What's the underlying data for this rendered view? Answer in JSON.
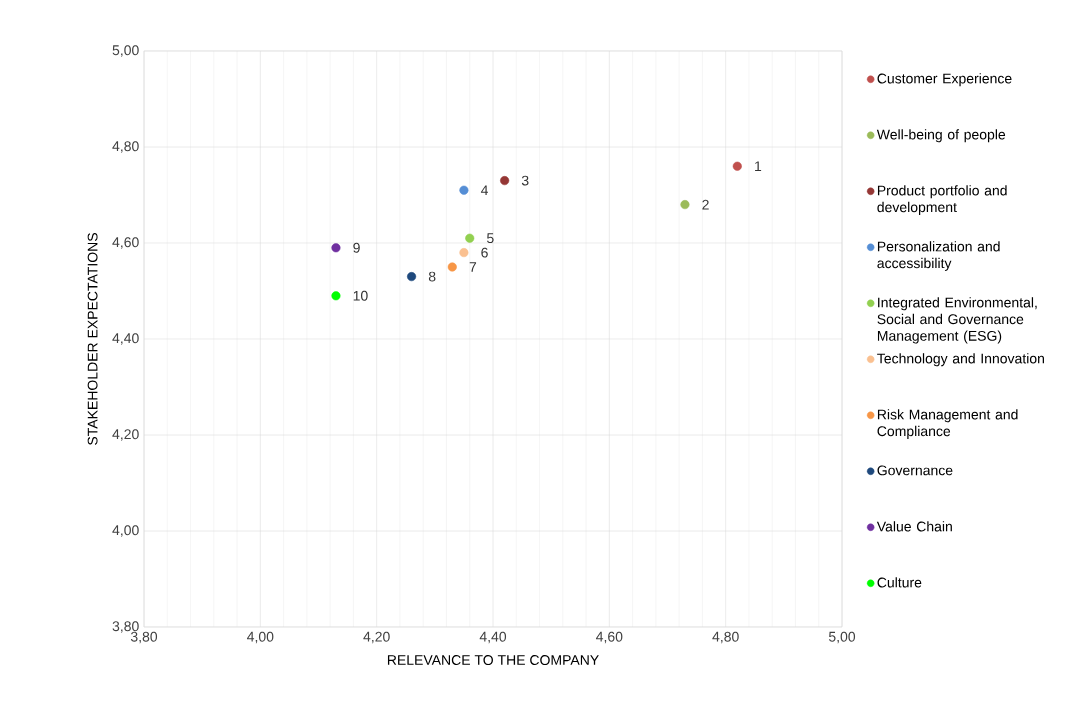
{
  "chart_data": {
    "type": "scatter",
    "xlabel": "RELEVANCE TO THE COMPANY",
    "ylabel": "STAKEHOLDER EXPECTATIONS",
    "xlim": [
      3.8,
      5.0
    ],
    "ylim": [
      3.8,
      5.0
    ],
    "xticks": [
      {
        "value": 3.8,
        "label": "3,80"
      },
      {
        "value": 4.0,
        "label": "4,00"
      },
      {
        "value": 4.2,
        "label": "4,20"
      },
      {
        "value": 4.4,
        "label": "4,40"
      },
      {
        "value": 4.6,
        "label": "4,60"
      },
      {
        "value": 4.8,
        "label": "4,80"
      },
      {
        "value": 5.0,
        "label": "5,00"
      }
    ],
    "yticks": [
      {
        "value": 3.8,
        "label": "3,80"
      },
      {
        "value": 4.0,
        "label": "4,00"
      },
      {
        "value": 4.2,
        "label": "4,20"
      },
      {
        "value": 4.4,
        "label": "4,40"
      },
      {
        "value": 4.6,
        "label": "4,60"
      },
      {
        "value": 4.8,
        "label": "4,80"
      },
      {
        "value": 5.0,
        "label": "5,00"
      }
    ],
    "grid": true,
    "legend": "right",
    "series": [
      {
        "name": "Customer Experience",
        "color": "#c0504d",
        "x": [
          4.82
        ],
        "values": [
          4.76
        ]
      },
      {
        "name": "Well-being of people",
        "color": "#9bbb59",
        "x": [
          4.73
        ],
        "values": [
          4.68
        ]
      },
      {
        "name": "Product portfolio and development",
        "color": "#953735",
        "x": [
          4.42
        ],
        "values": [
          4.73
        ]
      },
      {
        "name": "Personalization and accessibility",
        "color": "#558ed5",
        "x": [
          4.35
        ],
        "values": [
          4.71
        ]
      },
      {
        "name": "Integrated Environmental, Social and Governance Management (ESG)",
        "color": "#92d050",
        "x": [
          4.36
        ],
        "values": [
          4.61
        ]
      },
      {
        "name": "Technology and Innovation",
        "color": "#fac090",
        "x": [
          4.35
        ],
        "values": [
          4.58
        ]
      },
      {
        "name": "Risk Management and Compliance",
        "color": "#f79646",
        "x": [
          4.33
        ],
        "values": [
          4.55
        ]
      },
      {
        "name": "Governance",
        "color": "#1f497d",
        "x": [
          4.26
        ],
        "values": [
          4.53
        ]
      },
      {
        "name": "Value Chain",
        "color": "#7030a0",
        "x": [
          4.13
        ],
        "values": [
          4.59
        ]
      },
      {
        "name": "Culture",
        "color": "#00ff00",
        "x": [
          4.13
        ],
        "values": [
          4.49
        ]
      }
    ],
    "annotations": [
      {
        "text": "1",
        "x": 4.82,
        "y": 4.76
      },
      {
        "text": "2",
        "x": 4.73,
        "y": 4.68
      },
      {
        "text": "3",
        "x": 4.42,
        "y": 4.73
      },
      {
        "text": "4",
        "x": 4.35,
        "y": 4.71
      },
      {
        "text": "5",
        "x": 4.36,
        "y": 4.61
      },
      {
        "text": "6",
        "x": 4.35,
        "y": 4.58
      },
      {
        "text": "7",
        "x": 4.33,
        "y": 4.55
      },
      {
        "text": "8",
        "x": 4.26,
        "y": 4.53
      },
      {
        "text": "9",
        "x": 4.13,
        "y": 4.59
      },
      {
        "text": "10",
        "x": 4.13,
        "y": 4.49
      }
    ]
  }
}
